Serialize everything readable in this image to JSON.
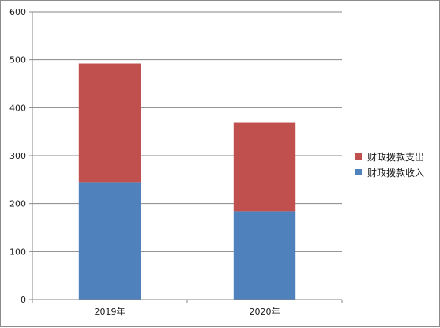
{
  "chart_data": {
    "type": "bar",
    "stacked": true,
    "categories": [
      "2019年",
      "2020年"
    ],
    "series": [
      {
        "name": "财政拨款收入",
        "values": [
          245,
          184
        ],
        "color": "#4f81bd"
      },
      {
        "name": "财政拨款支出",
        "values": [
          247,
          186
        ],
        "color": "#c0504d"
      }
    ],
    "ylim": [
      0,
      600
    ],
    "yticks": [
      "0",
      "100",
      "200",
      "300",
      "400",
      "500",
      "600"
    ],
    "grid": true,
    "legend_position": "right",
    "legend_order": [
      1,
      0
    ]
  }
}
